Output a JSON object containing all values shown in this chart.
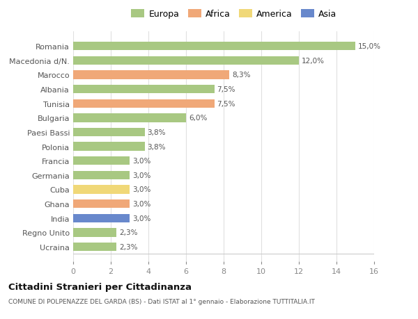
{
  "countries": [
    "Romania",
    "Macedonia d/N.",
    "Marocco",
    "Albania",
    "Tunisia",
    "Bulgaria",
    "Paesi Bassi",
    "Polonia",
    "Francia",
    "Germania",
    "Cuba",
    "Ghana",
    "India",
    "Regno Unito",
    "Ucraina"
  ],
  "values": [
    15.0,
    12.0,
    8.3,
    7.5,
    7.5,
    6.0,
    3.8,
    3.8,
    3.0,
    3.0,
    3.0,
    3.0,
    3.0,
    2.3,
    2.3
  ],
  "labels": [
    "15,0%",
    "12,0%",
    "8,3%",
    "7,5%",
    "7,5%",
    "6,0%",
    "3,8%",
    "3,8%",
    "3,0%",
    "3,0%",
    "3,0%",
    "3,0%",
    "3,0%",
    "2,3%",
    "2,3%"
  ],
  "colors": [
    "#a8c882",
    "#a8c882",
    "#f0a878",
    "#a8c882",
    "#f0a878",
    "#a8c882",
    "#a8c882",
    "#a8c882",
    "#a8c882",
    "#a8c882",
    "#f0d878",
    "#f0a878",
    "#6888cc",
    "#a8c882",
    "#a8c882"
  ],
  "legend_labels": [
    "Europa",
    "Africa",
    "America",
    "Asia"
  ],
  "legend_colors": [
    "#a8c882",
    "#f0a878",
    "#f0d878",
    "#6888cc"
  ],
  "title": "Cittadini Stranieri per Cittadinanza",
  "subtitle": "COMUNE DI POLPENAZZE DEL GARDA (BS) - Dati ISTAT al 1° gennaio - Elaborazione TUTTITALIA.IT",
  "xlim": [
    0,
    16
  ],
  "xticks": [
    0,
    2,
    4,
    6,
    8,
    10,
    12,
    14,
    16
  ],
  "bg_color": "#ffffff",
  "grid_color": "#e0e0e0"
}
